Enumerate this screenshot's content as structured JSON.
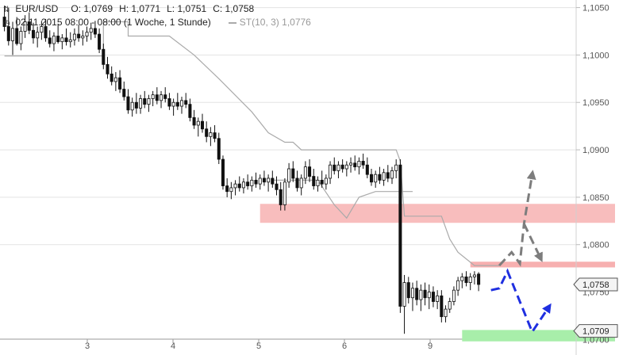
{
  "header": {
    "symbol": "EUR/USD",
    "open_label": "O:",
    "open": "1,0769",
    "high_label": "H:",
    "high": "1,0771",
    "low_label": "L:",
    "low": "1,0751",
    "close_label": "C:",
    "close": "1,0758",
    "date_range": "02.11.2015 08:00 - 08:00 (1 Woche, 1 Stunde)",
    "indicator_label": "ST(10, 3)",
    "indicator_value": "1,0776"
  },
  "colors": {
    "candle": "#111111",
    "supertrend": "#aaaaaa",
    "resistance_zone": "#f7b6b6",
    "resistance_line": "#f7b0b0",
    "support_zone": "#a8eeaa",
    "grey_arrow": "#7d7d7d",
    "blue_arrow": "#1f2fe0",
    "grid": "#e3e3e3",
    "axis_text": "#555555"
  },
  "chart_data": {
    "type": "candlestick",
    "x_tick_labels": [
      "3",
      "4",
      "5",
      "6",
      "9"
    ],
    "y_tick_labels": [
      "1,1050",
      "1,1000",
      "1,0950",
      "1,0900",
      "1,0850",
      "1,0800"
    ],
    "ylim": [
      1.0702,
      1.1058
    ],
    "grid": true,
    "current_price_label": "1,0758",
    "support_price_label": "1,0709",
    "hidden_tick_labels": [
      "1,0750",
      "1,0700"
    ],
    "candles": [
      [
        1.104,
        1.1052,
        1.1025,
        1.103
      ],
      [
        1.103,
        1.105,
        1.101,
        1.1015
      ],
      [
        1.1015,
        1.1035,
        1.1,
        1.1028
      ],
      [
        1.1028,
        1.104,
        1.101,
        1.1012
      ],
      [
        1.1012,
        1.103,
        1.1005,
        1.1025
      ],
      [
        1.1025,
        1.1042,
        1.1018,
        1.1035
      ],
      [
        1.1035,
        1.1045,
        1.1022,
        1.1026
      ],
      [
        1.1026,
        1.1034,
        1.1012,
        1.1018
      ],
      [
        1.1018,
        1.103,
        1.1008,
        1.1024
      ],
      [
        1.1024,
        1.1036,
        1.1016,
        1.103
      ],
      [
        1.103,
        1.1038,
        1.1014,
        1.1018
      ],
      [
        1.1018,
        1.1026,
        1.1008,
        1.1012
      ],
      [
        1.1012,
        1.1024,
        1.1004,
        1.102
      ],
      [
        1.102,
        1.1032,
        1.1012,
        1.1014
      ],
      [
        1.1014,
        1.1022,
        1.1006,
        1.1018
      ],
      [
        1.1018,
        1.1028,
        1.101,
        1.1014
      ],
      [
        1.1014,
        1.1024,
        1.1008,
        1.1016
      ],
      [
        1.1016,
        1.1028,
        1.101,
        1.1022
      ],
      [
        1.1022,
        1.1032,
        1.1014,
        1.1018
      ],
      [
        1.1018,
        1.1026,
        1.101,
        1.102
      ],
      [
        1.102,
        1.103,
        1.1014,
        1.1024
      ],
      [
        1.1024,
        1.1034,
        1.1016,
        1.1028
      ],
      [
        1.1028,
        1.1036,
        1.1018,
        1.1022
      ],
      [
        1.1022,
        1.1028,
        1.1002,
        1.1006
      ],
      [
        1.1006,
        1.1012,
        1.0985,
        1.099
      ],
      [
        1.099,
        1.0998,
        1.0975,
        1.098
      ],
      [
        1.098,
        1.0988,
        1.0968,
        1.0972
      ],
      [
        1.0972,
        1.0982,
        1.0962,
        1.0976
      ],
      [
        1.0976,
        1.0984,
        1.096,
        1.0964
      ],
      [
        1.0964,
        1.0972,
        1.0952,
        1.0956
      ],
      [
        1.0956,
        1.0964,
        1.0938,
        1.0942
      ],
      [
        1.0942,
        1.0955,
        1.0935,
        1.095
      ],
      [
        1.095,
        1.096,
        1.0938,
        1.0944
      ],
      [
        1.0944,
        1.0958,
        1.0938,
        1.0954
      ],
      [
        1.0954,
        1.0962,
        1.0944,
        1.0948
      ],
      [
        1.0948,
        1.0958,
        1.094,
        1.0954
      ],
      [
        1.0954,
        1.0962,
        1.0946,
        1.0958
      ],
      [
        1.0958,
        1.0966,
        1.0948,
        1.0952
      ],
      [
        1.0952,
        1.0962,
        1.0944,
        1.0958
      ],
      [
        1.0958,
        1.0966,
        1.095,
        1.0954
      ],
      [
        1.0954,
        1.096,
        1.0942,
        1.0946
      ],
      [
        1.0946,
        1.0954,
        1.0936,
        1.095
      ],
      [
        1.095,
        1.096,
        1.0942,
        1.0946
      ],
      [
        1.0946,
        1.0956,
        1.0938,
        1.0952
      ],
      [
        1.0952,
        1.096,
        1.0944,
        1.0948
      ],
      [
        1.0948,
        1.0954,
        1.093,
        1.0934
      ],
      [
        1.0934,
        1.0942,
        1.0922,
        1.0926
      ],
      [
        1.0926,
        1.0934,
        1.0914,
        1.093
      ],
      [
        1.093,
        1.0938,
        1.0918,
        1.0922
      ],
      [
        1.0922,
        1.093,
        1.0908,
        1.0914
      ],
      [
        1.0914,
        1.0924,
        1.0904,
        1.0918
      ],
      [
        1.0918,
        1.0926,
        1.0908,
        1.0912
      ],
      [
        1.0912,
        1.0918,
        1.0885,
        1.089
      ],
      [
        1.089,
        1.0894,
        1.0858,
        1.0862
      ],
      [
        1.0862,
        1.087,
        1.085,
        1.0856
      ],
      [
        1.0856,
        1.0866,
        1.0848,
        1.086
      ],
      [
        1.086,
        1.0868,
        1.0852,
        1.0864
      ],
      [
        1.0864,
        1.0872,
        1.0856,
        1.086
      ],
      [
        1.086,
        1.087,
        1.0854,
        1.0866
      ],
      [
        1.0866,
        1.0874,
        1.0858,
        1.0862
      ],
      [
        1.0862,
        1.0872,
        1.0856,
        1.0868
      ],
      [
        1.0868,
        1.0876,
        1.086,
        1.0864
      ],
      [
        1.0864,
        1.0874,
        1.0858,
        1.087
      ],
      [
        1.087,
        1.0878,
        1.0862,
        1.0866
      ],
      [
        1.0866,
        1.0874,
        1.0856,
        1.087
      ],
      [
        1.087,
        1.0878,
        1.086,
        1.0864
      ],
      [
        1.0864,
        1.0872,
        1.0852,
        1.0858
      ],
      [
        1.0858,
        1.0866,
        1.0836,
        1.0842
      ],
      [
        1.0842,
        1.087,
        1.0836,
        1.0866
      ],
      [
        1.0866,
        1.0886,
        1.086,
        1.088
      ],
      [
        1.088,
        1.0888,
        1.0866,
        1.087
      ],
      [
        1.087,
        1.0878,
        1.0856,
        1.086
      ],
      [
        1.086,
        1.0874,
        1.0852,
        1.087
      ],
      [
        1.087,
        1.0888,
        1.0864,
        1.0882
      ],
      [
        1.0882,
        1.089,
        1.0866,
        1.0872
      ],
      [
        1.0872,
        1.088,
        1.0858,
        1.0862
      ],
      [
        1.0862,
        1.0872,
        1.0856,
        1.0868
      ],
      [
        1.0868,
        1.0878,
        1.086,
        1.0864
      ],
      [
        1.0864,
        1.0874,
        1.0858,
        1.087
      ],
      [
        1.087,
        1.0888,
        1.0864,
        1.0884
      ],
      [
        1.0884,
        1.0892,
        1.0874,
        1.0878
      ],
      [
        1.0878,
        1.0888,
        1.087,
        1.0884
      ],
      [
        1.0884,
        1.089,
        1.0876,
        1.088
      ],
      [
        1.088,
        1.0888,
        1.0872,
        1.0884
      ],
      [
        1.0884,
        1.0892,
        1.0876,
        1.0886
      ],
      [
        1.0886,
        1.0894,
        1.0878,
        1.0882
      ],
      [
        1.0882,
        1.0892,
        1.0874,
        1.0888
      ],
      [
        1.0888,
        1.0896,
        1.088,
        1.0884
      ],
      [
        1.0884,
        1.0892,
        1.087,
        1.0874
      ],
      [
        1.0874,
        1.088,
        1.0862,
        1.0866
      ],
      [
        1.0866,
        1.0878,
        1.086,
        1.0874
      ],
      [
        1.0874,
        1.0882,
        1.0864,
        1.0868
      ],
      [
        1.0868,
        1.088,
        1.0862,
        1.0876
      ],
      [
        1.0876,
        1.0884,
        1.0866,
        1.087
      ],
      [
        1.087,
        1.0882,
        1.0864,
        1.0878
      ],
      [
        1.0878,
        1.089,
        1.087,
        1.0884
      ],
      [
        1.0884,
        1.089,
        1.0728,
        1.0735
      ],
      [
        1.0735,
        1.0768,
        1.0706,
        1.076
      ],
      [
        1.076,
        1.0766,
        1.0738,
        1.0744
      ],
      [
        1.0744,
        1.076,
        1.073,
        1.0754
      ],
      [
        1.0754,
        1.0762,
        1.0736,
        1.0742
      ],
      [
        1.0742,
        1.0758,
        1.073,
        1.0752
      ],
      [
        1.0752,
        1.076,
        1.0736,
        1.0744
      ],
      [
        1.0744,
        1.0758,
        1.0732,
        1.075
      ],
      [
        1.075,
        1.0756,
        1.0734,
        1.074
      ],
      [
        1.074,
        1.0752,
        1.0732,
        1.0746
      ],
      [
        1.0746,
        1.0752,
        1.0718,
        1.0724
      ],
      [
        1.0724,
        1.0736,
        1.0718,
        1.0732
      ],
      [
        1.0732,
        1.0744,
        1.0728,
        1.074
      ],
      [
        1.074,
        1.0756,
        1.0736,
        1.0752
      ],
      [
        1.0752,
        1.0766,
        1.0746,
        1.0762
      ],
      [
        1.0762,
        1.077,
        1.0754,
        1.0766
      ],
      [
        1.0766,
        1.0772,
        1.0756,
        1.076
      ],
      [
        1.076,
        1.077,
        1.0752,
        1.0766
      ],
      [
        1.0766,
        1.0772,
        1.0758,
        1.0768
      ],
      [
        1.0769,
        1.0771,
        1.0751,
        1.0758
      ]
    ],
    "supertrend_segments": [
      [
        [
          0,
          1.0999
        ],
        [
          24,
          1.0999
        ],
        [
          24,
          1.1035
        ],
        [
          30,
          1.1035
        ],
        [
          30,
          1.102
        ],
        [
          40,
          1.102
        ],
        [
          46,
          1.1
        ],
        [
          52,
          1.0975
        ],
        [
          60,
          1.094
        ],
        [
          64,
          1.0918
        ],
        [
          68,
          1.0908
        ],
        [
          70,
          1.0908
        ],
        [
          72,
          1.09
        ],
        [
          80,
          1.09
        ],
        [
          88,
          1.09
        ],
        [
          95,
          1.09
        ],
        [
          96,
          1.0888
        ],
        [
          97,
          1.083
        ],
        [
          100,
          1.083
        ],
        [
          106,
          1.083
        ],
        [
          108,
          1.0806
        ],
        [
          110,
          1.0792
        ],
        [
          114,
          1.0778
        ],
        [
          120,
          1.0778
        ]
      ],
      [
        [
          65,
          1.0868
        ],
        [
          76,
          1.0868
        ],
        [
          80,
          1.0842
        ],
        [
          83,
          1.0828
        ],
        [
          86,
          1.085
        ],
        [
          90,
          1.0856
        ],
        [
          99,
          1.0856
        ]
      ]
    ],
    "resistance_zone": [
      1.0823,
      1.0843
    ],
    "resistance_line": [
      1.0776,
      1.0782
    ],
    "support_zone": [
      1.0698,
      1.071
    ],
    "bullish_scenario": [
      [
        120,
        1.0778
      ],
      [
        123,
        1.0792
      ],
      [
        125,
        1.078
      ],
      [
        126,
        1.0822
      ],
      [
        128,
        1.0874
      ]
    ],
    "bullish_pullback": [
      [
        126,
        1.0822
      ],
      [
        130,
        1.0786
      ]
    ],
    "bearish_scenario": [
      [
        118,
        1.0752
      ],
      [
        120,
        1.0754
      ],
      [
        122,
        1.0772
      ],
      [
        128,
        1.0708
      ],
      [
        132,
        1.0734
      ]
    ]
  }
}
